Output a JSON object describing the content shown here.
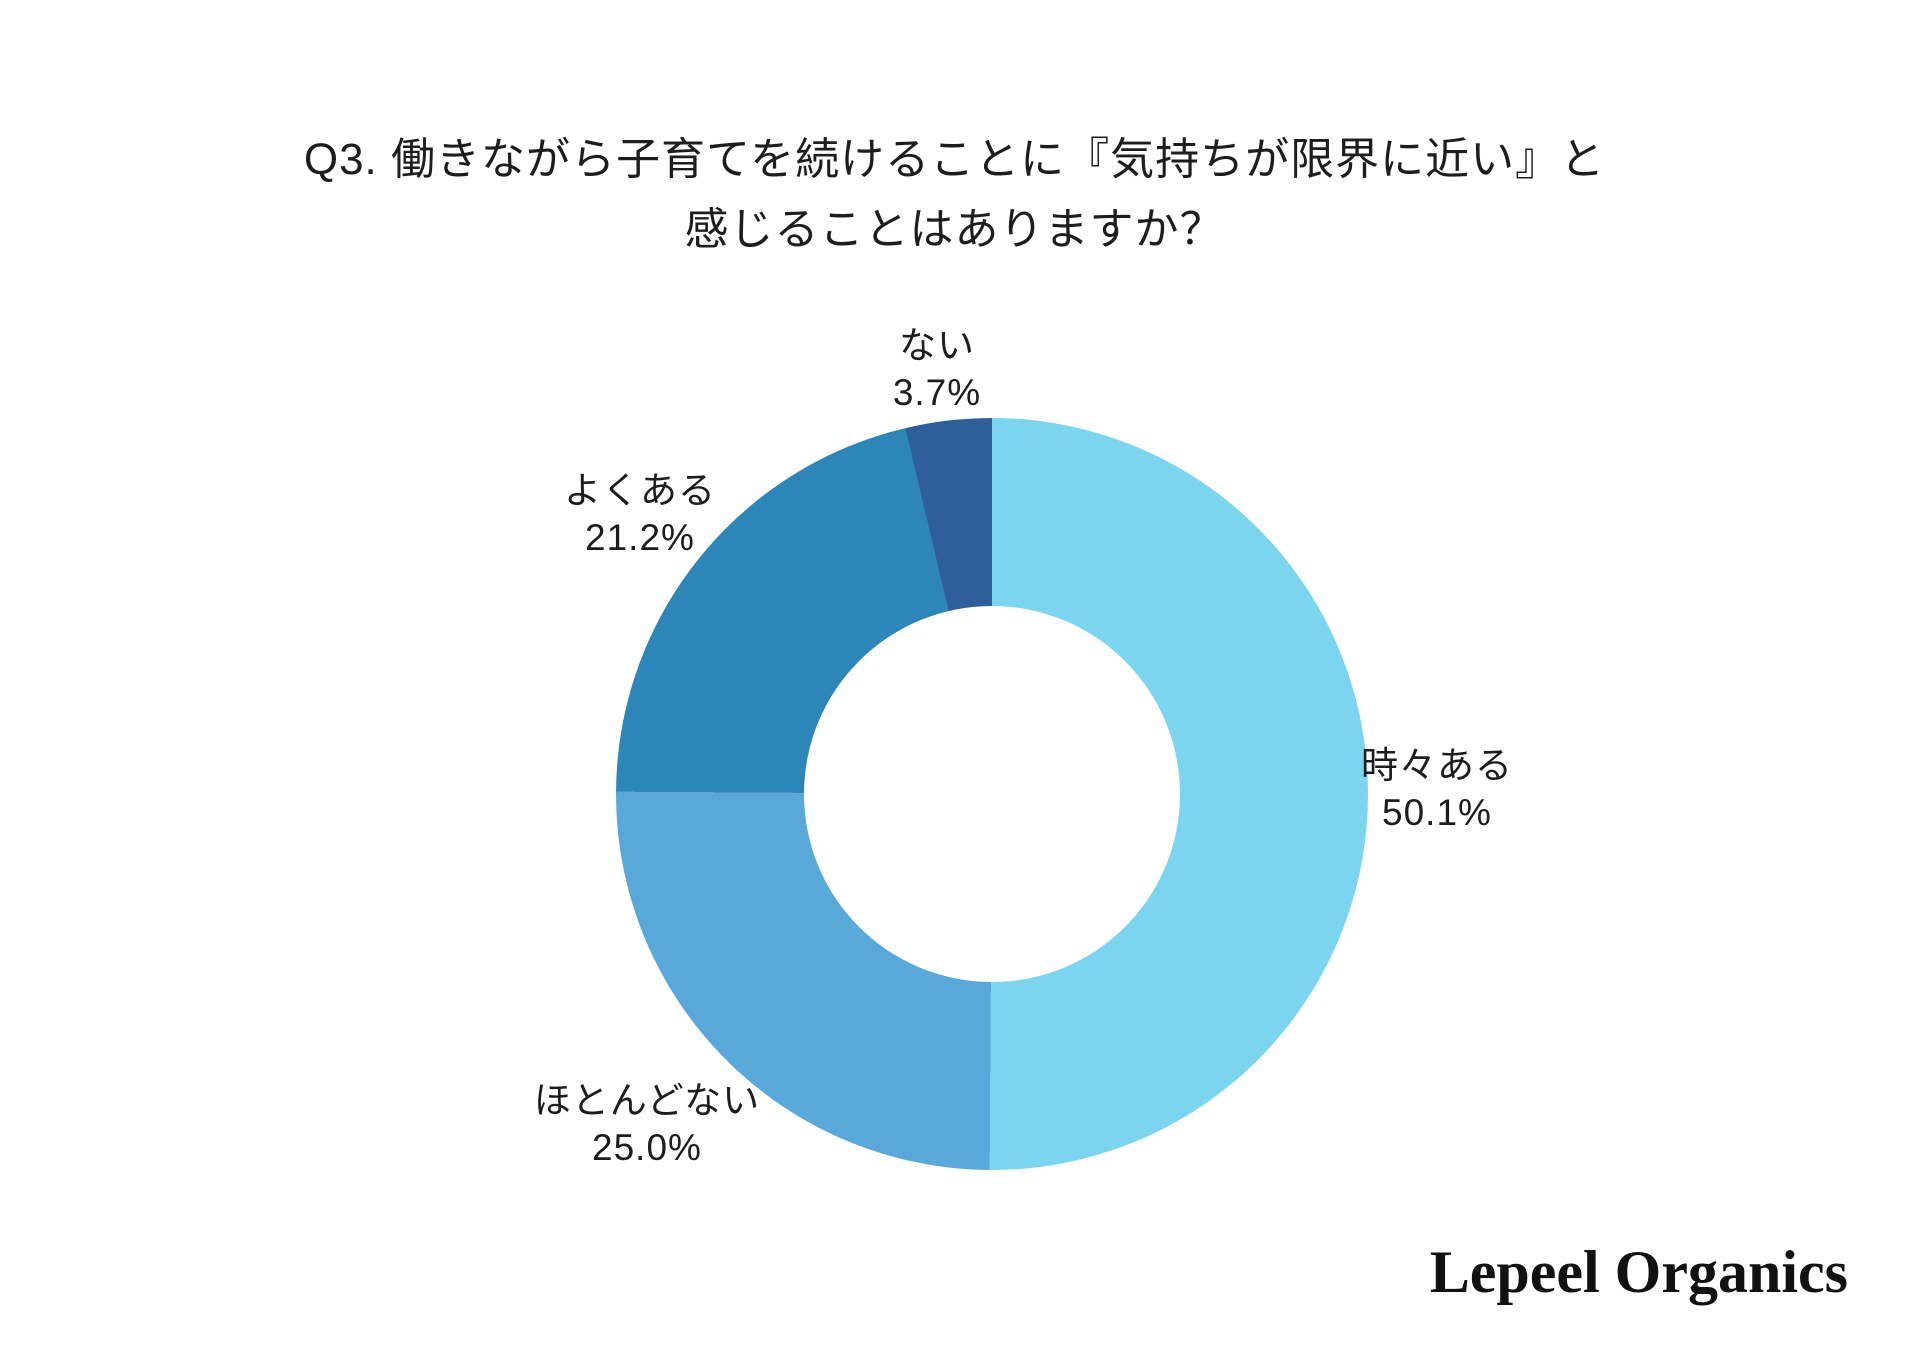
{
  "title": {
    "line1": "Q3. 働きながら子育てを続けることに『気持ちが限界に近い』と",
    "line2": "感じることはありますか？"
  },
  "chart_data": {
    "type": "pie",
    "subtype": "donut",
    "start_angle_deg": 0,
    "direction": "clockwise",
    "inner_radius_ratio": 0.5,
    "hole_color": "#ffffff",
    "title": "Q3. 働きながら子育てを続けることに『気持ちが限界に近い』と感じることはありますか？",
    "segments": [
      {
        "label": "時々ある",
        "value_pct": 50.1,
        "display": "50.1%",
        "color": "#7BD5EF"
      },
      {
        "label": "ほとんどない",
        "value_pct": 25.0,
        "display": "25.0%",
        "color": "#59A8DA"
      },
      {
        "label": "よくある",
        "value_pct": 21.2,
        "display": "21.2%",
        "color": "#2D86B8"
      },
      {
        "label": "ない",
        "value_pct": 3.7,
        "display": "3.7%",
        "color": "#2E5F9A"
      }
    ]
  },
  "logo": {
    "text": "Lepeel Organics"
  }
}
